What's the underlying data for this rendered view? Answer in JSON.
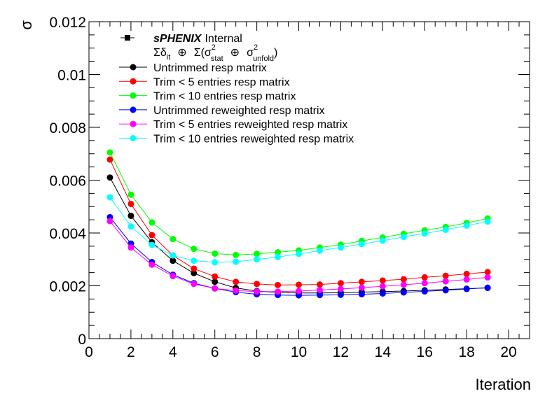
{
  "chart_data": {
    "type": "line",
    "xlabel": "Iteration",
    "ylabel": "σ",
    "xlim": [
      0,
      21
    ],
    "ylim": [
      0,
      0.012
    ],
    "x_ticks": [
      0,
      2,
      4,
      6,
      8,
      10,
      12,
      14,
      16,
      18,
      20
    ],
    "x_tick_labels": [
      "0",
      "2",
      "4",
      "6",
      "8",
      "10",
      "12",
      "14",
      "16",
      "18",
      "20"
    ],
    "y_ticks": [
      0,
      0.002,
      0.004,
      0.006,
      0.008,
      0.01,
      0.012
    ],
    "y_tick_labels": [
      "0",
      "0.002",
      "0.004",
      "0.006",
      "0.008",
      "0.01",
      "0.012"
    ],
    "grid": false,
    "legend_placement": "top-left",
    "legend": {
      "brand": "sPHENIX",
      "brand_suffix": "Internal",
      "formula": {
        "sum": "Σδ",
        "it_sub": "it",
        "oplus": "⊕",
        "sigma_open": "Σ(σ",
        "sq": "2",
        "stat_sub": "stat",
        "sigma": "σ",
        "unfold_sub": "unfold",
        "close": ")"
      }
    },
    "x": [
      1,
      2,
      3,
      4,
      5,
      6,
      7,
      8,
      9,
      10,
      11,
      12,
      13,
      14,
      15,
      16,
      17,
      18,
      19
    ],
    "series": [
      {
        "name": "Untrimmed resp matrix",
        "color": "#000000",
        "values": [
          0.0061,
          0.00465,
          0.00365,
          0.00295,
          0.00248,
          0.00215,
          0.00192,
          0.0018,
          0.00175,
          0.00173,
          0.00173,
          0.00174,
          0.00176,
          0.00178,
          0.0018,
          0.00183,
          0.00186,
          0.00189,
          0.00192
        ]
      },
      {
        "name": "Trim < 5 entries resp matrix",
        "color": "#ff0000",
        "values": [
          0.00678,
          0.0051,
          0.00392,
          0.00315,
          0.00265,
          0.00235,
          0.00215,
          0.00207,
          0.00203,
          0.00204,
          0.00205,
          0.0021,
          0.00215,
          0.0022,
          0.00225,
          0.00232,
          0.00238,
          0.00245,
          0.00252
        ]
      },
      {
        "name": "Trim < 10 entries resp matrix",
        "color": "#00ff00",
        "values": [
          0.00705,
          0.00545,
          0.0044,
          0.00377,
          0.0034,
          0.00322,
          0.00317,
          0.00321,
          0.00327,
          0.00334,
          0.00345,
          0.00356,
          0.0037,
          0.00383,
          0.00397,
          0.0041,
          0.00423,
          0.00438,
          0.00455
        ]
      },
      {
        "name": "Untrimmed reweighted resp matrix",
        "color": "#0000ff",
        "values": [
          0.0046,
          0.0036,
          0.0029,
          0.00242,
          0.0021,
          0.0019,
          0.00176,
          0.00168,
          0.00165,
          0.00164,
          0.00165,
          0.00166,
          0.00168,
          0.00171,
          0.00175,
          0.00179,
          0.00183,
          0.00188,
          0.00193
        ]
      },
      {
        "name": "Trim < 5 entries reweighted resp matrix",
        "color": "#ff00ff",
        "values": [
          0.00445,
          0.00345,
          0.0028,
          0.00237,
          0.00207,
          0.0019,
          0.00182,
          0.00178,
          0.00178,
          0.0018,
          0.00184,
          0.00188,
          0.00193,
          0.00198,
          0.00204,
          0.0021,
          0.00217,
          0.00224,
          0.00232
        ]
      },
      {
        "name": "Trim < 10 entries reweighted resp matrix",
        "color": "#00ffff",
        "values": [
          0.00535,
          0.00425,
          0.00355,
          0.00315,
          0.00295,
          0.00289,
          0.00291,
          0.003,
          0.00309,
          0.00321,
          0.00333,
          0.00345,
          0.00358,
          0.00371,
          0.00385,
          0.00398,
          0.00412,
          0.00428,
          0.00443
        ]
      }
    ]
  }
}
